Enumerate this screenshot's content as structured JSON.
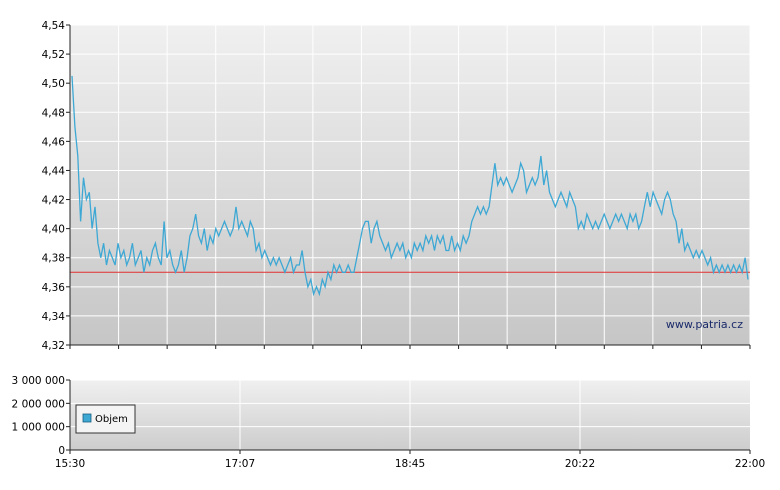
{
  "chart_data": [
    {
      "type": "line",
      "title": "",
      "watermark": "www.patria.cz",
      "ylim": [
        4.32,
        4.54
      ],
      "y_ticks": [
        "4,32",
        "4,34",
        "4,36",
        "4,38",
        "4,40",
        "4,42",
        "4,44",
        "4,46",
        "4,48",
        "4,50",
        "4,52",
        "4,54"
      ],
      "x_range": [
        "15:30",
        "22:00"
      ],
      "reference_value": 4.37,
      "colors": {
        "line": "#3ea8d4",
        "reference": "#e03030"
      },
      "grid": true,
      "series": [
        {
          "values": [
            4.505,
            4.47,
            4.45,
            4.405,
            4.435,
            4.42,
            4.425,
            4.4,
            4.415,
            4.39,
            4.38,
            4.39,
            4.375,
            4.385,
            4.38,
            4.375,
            4.39,
            4.38,
            4.385,
            4.375,
            4.38,
            4.39,
            4.375,
            4.38,
            4.385,
            4.37,
            4.38,
            4.375,
            4.385,
            4.39,
            4.38,
            4.375,
            4.405,
            4.38,
            4.385,
            4.375,
            4.37,
            4.375,
            4.385,
            4.37,
            4.38,
            4.395,
            4.4,
            4.41,
            4.395,
            4.39,
            4.4,
            4.385,
            4.395,
            4.39,
            4.4,
            4.395,
            4.4,
            4.405,
            4.4,
            4.395,
            4.4,
            4.415,
            4.4,
            4.405,
            4.4,
            4.395,
            4.405,
            4.4,
            4.385,
            4.39,
            4.38,
            4.385,
            4.38,
            4.375,
            4.38,
            4.375,
            4.38,
            4.375,
            4.37,
            4.375,
            4.38,
            4.37,
            4.375,
            4.375,
            4.385,
            4.37,
            4.36,
            4.365,
            4.355,
            4.36,
            4.355,
            4.365,
            4.36,
            4.37,
            4.365,
            4.375,
            4.37,
            4.375,
            4.37,
            4.37,
            4.375,
            4.37,
            4.37,
            4.38,
            4.39,
            4.4,
            4.405,
            4.405,
            4.39,
            4.4,
            4.405,
            4.395,
            4.39,
            4.385,
            4.39,
            4.38,
            4.385,
            4.39,
            4.385,
            4.39,
            4.38,
            4.385,
            4.38,
            4.39,
            4.385,
            4.39,
            4.385,
            4.395,
            4.39,
            4.395,
            4.385,
            4.395,
            4.39,
            4.395,
            4.385,
            4.385,
            4.395,
            4.385,
            4.39,
            4.385,
            4.395,
            4.39,
            4.395,
            4.405,
            4.41,
            4.415,
            4.41,
            4.415,
            4.41,
            4.415,
            4.43,
            4.445,
            4.43,
            4.435,
            4.43,
            4.435,
            4.43,
            4.425,
            4.43,
            4.435,
            4.445,
            4.44,
            4.425,
            4.43,
            4.435,
            4.43,
            4.435,
            4.45,
            4.43,
            4.44,
            4.425,
            4.42,
            4.415,
            4.42,
            4.425,
            4.42,
            4.415,
            4.425,
            4.42,
            4.415,
            4.4,
            4.405,
            4.4,
            4.41,
            4.405,
            4.4,
            4.405,
            4.4,
            4.405,
            4.41,
            4.405,
            4.4,
            4.405,
            4.41,
            4.405,
            4.41,
            4.405,
            4.4,
            4.41,
            4.405,
            4.41,
            4.4,
            4.405,
            4.415,
            4.425,
            4.415,
            4.425,
            4.42,
            4.415,
            4.41,
            4.42,
            4.425,
            4.42,
            4.41,
            4.405,
            4.39,
            4.4,
            4.385,
            4.39,
            4.385,
            4.38,
            4.385,
            4.38,
            4.385,
            4.38,
            4.375,
            4.38,
            4.37,
            4.375,
            4.37,
            4.375,
            4.37,
            4.375,
            4.37,
            4.375,
            4.37,
            4.375,
            4.37,
            4.38,
            4.365
          ]
        }
      ]
    },
    {
      "type": "area",
      "ylim": [
        0,
        3000000
      ],
      "y_ticks": [
        "0",
        "1 000 000",
        "2 000 000",
        "3 000 000"
      ],
      "x_ticks": [
        "15:30",
        "17:07",
        "18:45",
        "20:22",
        "22:00"
      ],
      "legend": "Objem",
      "legend_placement": "left",
      "colors": {
        "legend_swatch": "#3ea8d4"
      },
      "series": [
        {
          "name": "Objem",
          "values": []
        }
      ]
    }
  ]
}
